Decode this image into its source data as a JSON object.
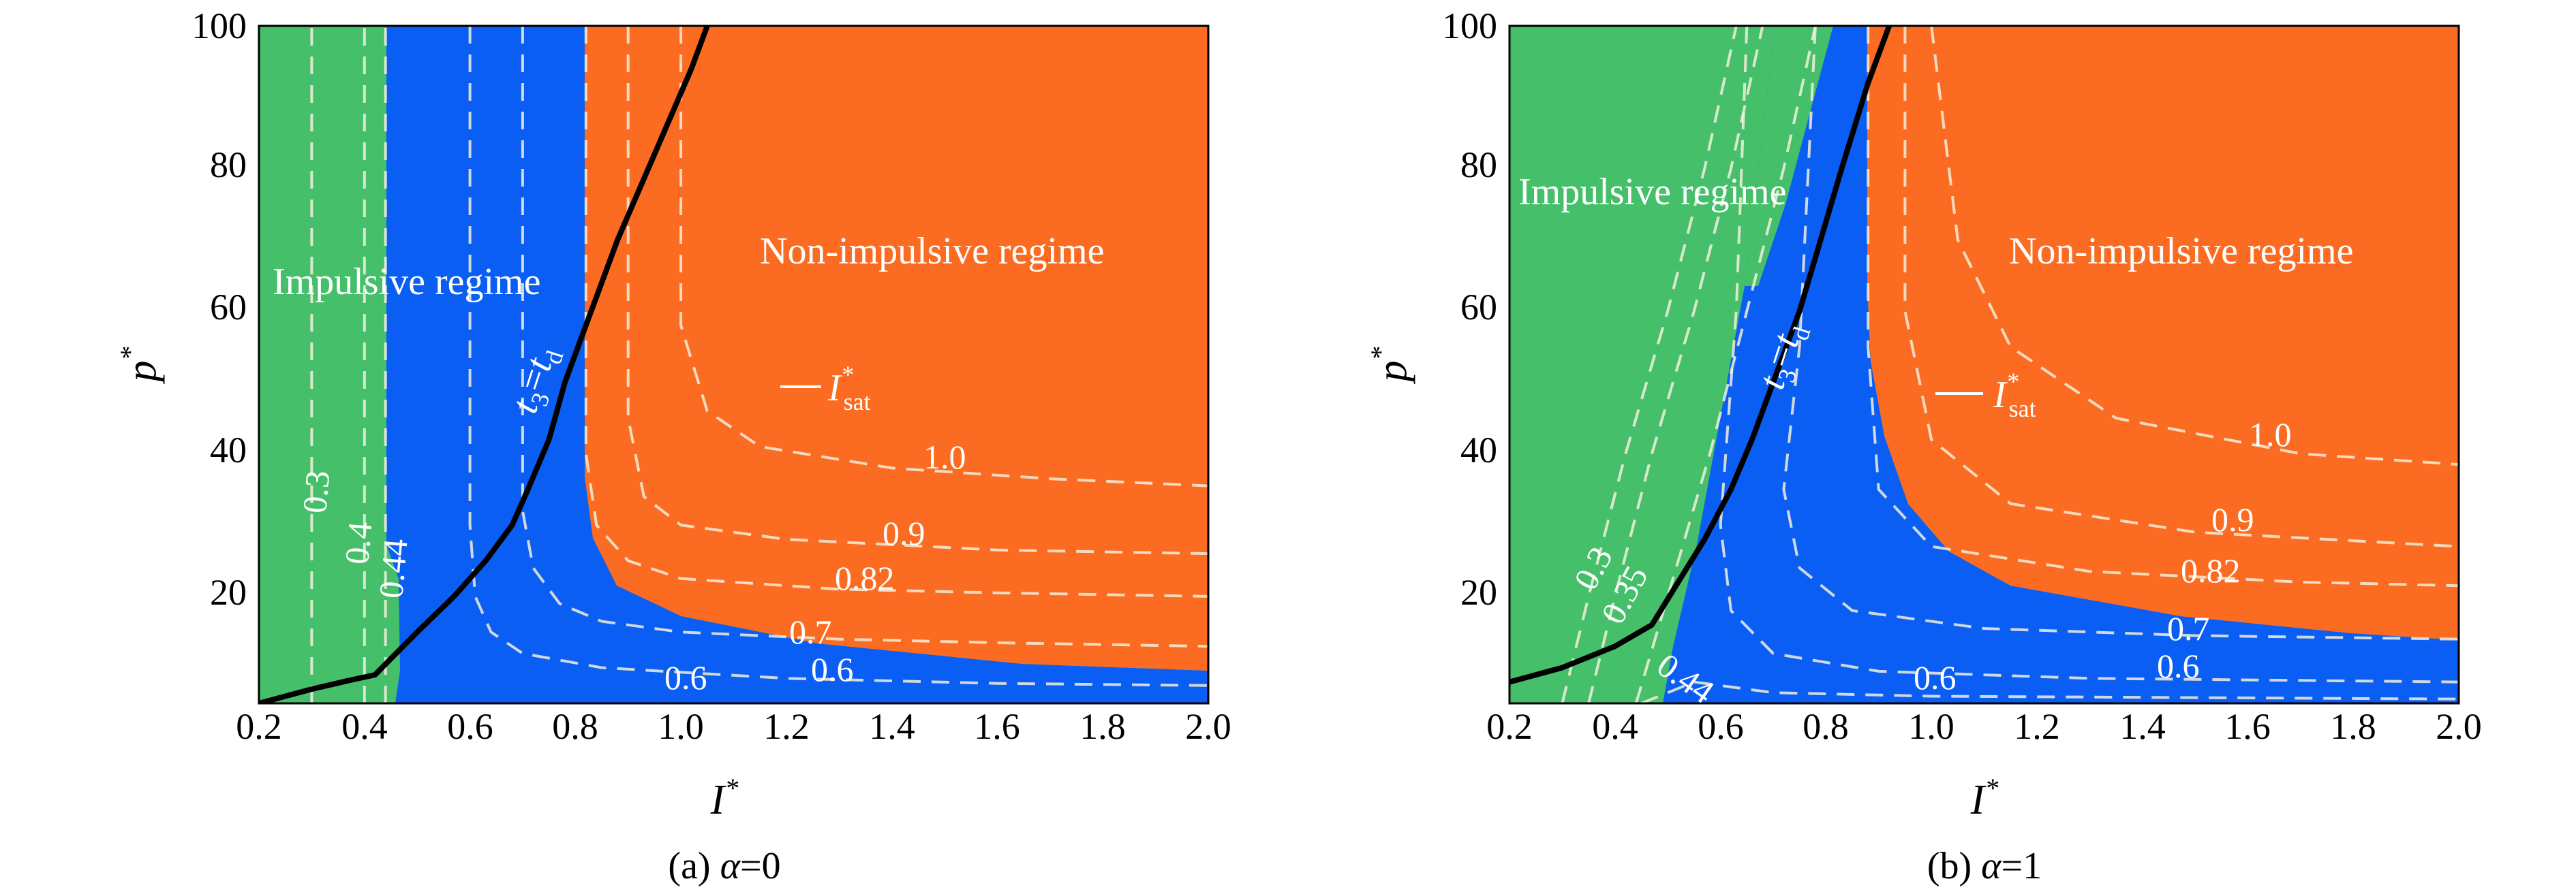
{
  "chart_data": [
    {
      "type": "contour",
      "caption": {
        "prefix": "(a) ",
        "symbol": "α",
        "suffix": "=0"
      },
      "xlabel": "I*",
      "ylabel": "p*",
      "xlim": [
        0.2,
        2.0
      ],
      "ylim": [
        5,
        100
      ],
      "x_ticks": [
        "0.2",
        "0.4",
        "0.6",
        "0.8",
        "1.0",
        "1.2",
        "1.4",
        "1.6",
        "1.8",
        "2.0"
      ],
      "y_ticks": [
        "20",
        "40",
        "60",
        "80",
        "100"
      ],
      "regions": {
        "green": {
          "color": "#45bf6a"
        },
        "blue": {
          "color": "#0b5ef3"
        },
        "orange": {
          "color": "#fb6c22"
        }
      },
      "regime_labels": {
        "impulsive": "Impulsive regime",
        "non_impulsive": "Non-impulsive regime"
      },
      "saturation_label": {
        "base": "I",
        "sup": "*",
        "sub": "sat"
      },
      "boundary_curve": {
        "label": {
          "t": "t",
          "sub1": "3",
          "eq": "=",
          "t2": "t",
          "sub2": "d"
        },
        "points": [
          [
            0.2,
            5
          ],
          [
            0.3,
            7
          ],
          [
            0.37,
            8.2
          ],
          [
            0.42,
            9
          ],
          [
            0.46,
            12
          ],
          [
            0.5,
            15
          ],
          [
            0.57,
            20
          ],
          [
            0.63,
            25
          ],
          [
            0.68,
            30
          ],
          [
            0.71,
            35
          ],
          [
            0.75,
            42
          ],
          [
            0.78,
            50
          ],
          [
            0.82,
            58
          ],
          [
            0.88,
            70
          ],
          [
            0.95,
            82
          ],
          [
            1.02,
            94
          ],
          [
            1.05,
            100
          ]
        ]
      },
      "contours": [
        {
          "label": "0.3",
          "points": [
            [
              0.3,
              5
            ],
            [
              0.3,
              100
            ]
          ]
        },
        {
          "label": "0.4",
          "points": [
            [
              0.4,
              5
            ],
            [
              0.4,
              100
            ]
          ]
        },
        {
          "label": "0.44",
          "points": [
            [
              0.44,
              5
            ],
            [
              0.44,
              100
            ]
          ]
        },
        {
          "label": "0.6",
          "points": [
            [
              0.6,
              100
            ],
            [
              0.6,
              30
            ],
            [
              0.61,
              20
            ],
            [
              0.64,
              15
            ],
            [
              0.7,
              12
            ],
            [
              0.85,
              10
            ],
            [
              1.2,
              8.5
            ],
            [
              1.6,
              7.8
            ],
            [
              2.0,
              7.5
            ]
          ]
        },
        {
          "label": "0.7",
          "points": [
            [
              0.7,
              100
            ],
            [
              0.7,
              32
            ],
            [
              0.72,
              24
            ],
            [
              0.77,
              19
            ],
            [
              0.85,
              16.5
            ],
            [
              1.0,
              15
            ],
            [
              1.3,
              14
            ],
            [
              1.6,
              13.5
            ],
            [
              2.0,
              13
            ]
          ]
        },
        {
          "label": "0.82",
          "points": [
            [
              0.82,
              100
            ],
            [
              0.82,
              40
            ],
            [
              0.84,
              30
            ],
            [
              0.9,
              25
            ],
            [
              1.0,
              22.5
            ],
            [
              1.3,
              21
            ],
            [
              1.6,
              20.5
            ],
            [
              2.0,
              20
            ]
          ]
        },
        {
          "label": "0.9",
          "points": [
            [
              0.9,
              100
            ],
            [
              0.9,
              45
            ],
            [
              0.93,
              34
            ],
            [
              1.0,
              30
            ],
            [
              1.2,
              28
            ],
            [
              1.6,
              26.5
            ],
            [
              2.0,
              26
            ]
          ]
        },
        {
          "label": "1.0",
          "points": [
            [
              1.0,
              100
            ],
            [
              1.0,
              58
            ],
            [
              1.05,
              46
            ],
            [
              1.15,
              41
            ],
            [
              1.4,
              38
            ],
            [
              1.7,
              36.5
            ],
            [
              2.0,
              35.5
            ]
          ]
        }
      ]
    },
    {
      "type": "contour",
      "caption": {
        "prefix": "(b) ",
        "symbol": "α",
        "suffix": "=1"
      },
      "xlabel": "I*",
      "ylabel": "p*",
      "xlim": [
        0.2,
        2.0
      ],
      "ylim": [
        5,
        100
      ],
      "x_ticks": [
        "0.2",
        "0.4",
        "0.6",
        "0.8",
        "1.0",
        "1.2",
        "1.4",
        "1.6",
        "1.8",
        "2.0"
      ],
      "y_ticks": [
        "20",
        "40",
        "60",
        "80",
        "100"
      ],
      "regions": {
        "green": {
          "color": "#45bf6a"
        },
        "blue": {
          "color": "#0b5ef3"
        },
        "orange": {
          "color": "#fb6c22"
        }
      },
      "regime_labels": {
        "impulsive": "Impulsive regime",
        "non_impulsive": "Non-impulsive regime"
      },
      "saturation_label": {
        "base": "I",
        "sup": "*",
        "sub": "sat"
      },
      "boundary_curve": {
        "label": {
          "t": "t",
          "sub1": "3",
          "eq": "=",
          "t2": "t",
          "sub2": "d"
        },
        "points": [
          [
            0.2,
            8
          ],
          [
            0.3,
            10
          ],
          [
            0.4,
            13
          ],
          [
            0.47,
            16
          ],
          [
            0.52,
            22
          ],
          [
            0.57,
            28
          ],
          [
            0.62,
            35
          ],
          [
            0.66,
            42
          ],
          [
            0.7,
            50
          ],
          [
            0.75,
            60
          ],
          [
            0.79,
            70
          ],
          [
            0.83,
            80
          ],
          [
            0.88,
            92
          ],
          [
            0.92,
            100
          ]
        ]
      },
      "contours": [
        {
          "label": "0.3",
          "points": [
            [
              0.3,
              5
            ],
            [
              0.35,
              20
            ],
            [
              0.42,
              40
            ],
            [
              0.5,
              60
            ],
            [
              0.57,
              80
            ],
            [
              0.63,
              100
            ]
          ]
        },
        {
          "label": "0.35",
          "points": [
            [
              0.35,
              5
            ],
            [
              0.4,
              20
            ],
            [
              0.47,
              40
            ],
            [
              0.55,
              60
            ],
            [
              0.62,
              80
            ],
            [
              0.68,
              100
            ]
          ]
        },
        {
          "label": "0.44",
          "points": [
            [
              0.44,
              5
            ],
            [
              0.5,
              20
            ],
            [
              0.58,
              40
            ],
            [
              0.65,
              60
            ],
            [
              0.72,
              80
            ],
            [
              0.78,
              100
            ]
          ]
        },
        {
          "label": "0.6",
          "points": [
            [
              0.45,
              5
            ],
            [
              0.55,
              8
            ],
            [
              0.7,
              6.5
            ],
            [
              1.0,
              6
            ],
            [
              1.5,
              5.8
            ],
            [
              2.0,
              5.6
            ]
          ]
        },
        {
          "label": "0.6",
          "points": [
            [
              0.65,
              100
            ],
            [
              0.63,
              60
            ],
            [
              0.6,
              30
            ],
            [
              0.62,
              18
            ],
            [
              0.7,
              12
            ],
            [
              0.9,
              9.5
            ],
            [
              1.3,
              8.5
            ],
            [
              2.0,
              8
            ]
          ]
        },
        {
          "label": "0.7",
          "points": [
            [
              0.78,
              100
            ],
            [
              0.75,
              55
            ],
            [
              0.72,
              35
            ],
            [
              0.75,
              24
            ],
            [
              0.85,
              18
            ],
            [
              1.1,
              15.5
            ],
            [
              1.5,
              14.5
            ],
            [
              2.0,
              14
            ]
          ]
        },
        {
          "label": "0.82",
          "points": [
            [
              0.88,
              100
            ],
            [
              0.88,
              55
            ],
            [
              0.9,
              35
            ],
            [
              1.0,
              27
            ],
            [
              1.3,
              23.5
            ],
            [
              1.7,
              22
            ],
            [
              2.0,
              21.5
            ]
          ]
        },
        {
          "label": "0.9",
          "points": [
            [
              0.95,
              100
            ],
            [
              0.95,
              60
            ],
            [
              1.0,
              42
            ],
            [
              1.15,
              33
            ],
            [
              1.5,
              29
            ],
            [
              2.0,
              27
            ]
          ]
        },
        {
          "label": "1.0",
          "points": [
            [
              1.0,
              100
            ],
            [
              1.05,
              70
            ],
            [
              1.15,
              55
            ],
            [
              1.35,
              45
            ],
            [
              1.7,
              40
            ],
            [
              2.0,
              38.5
            ]
          ]
        }
      ]
    }
  ]
}
